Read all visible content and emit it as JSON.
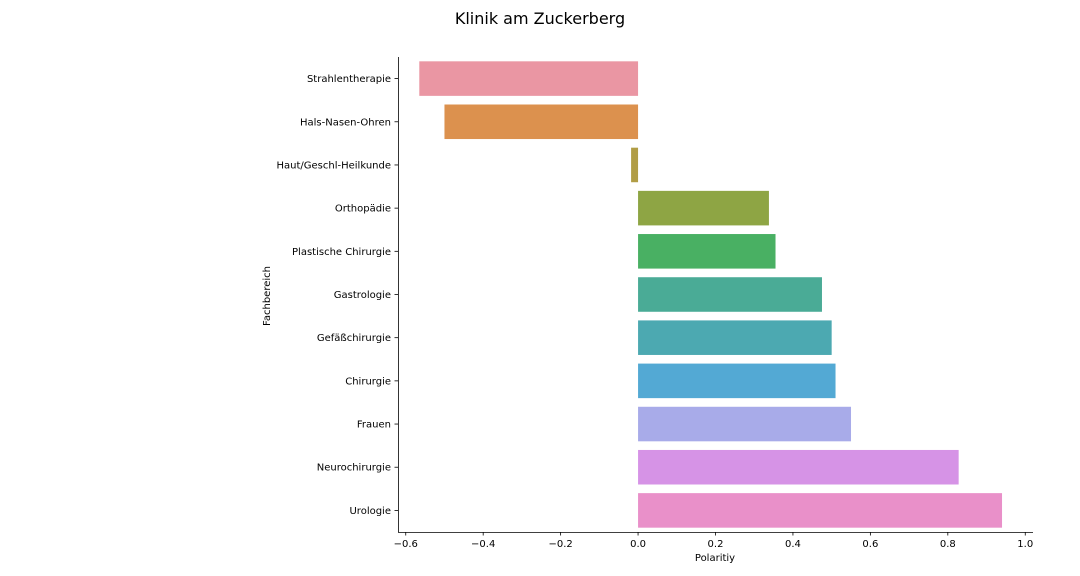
{
  "chart_data": {
    "type": "bar",
    "orientation": "horizontal",
    "title": "Klinik am Zuckerberg",
    "xlabel": "Polaritiy",
    "ylabel": "Fachbereich",
    "xlim": [
      -0.62,
      1.02
    ],
    "xticks": [
      -0.6,
      -0.4,
      -0.2,
      0.0,
      0.2,
      0.4,
      0.6,
      0.8,
      1.0
    ],
    "xtick_labels": [
      "−0.6",
      "−0.4",
      "−0.2",
      "0.0",
      "0.2",
      "0.4",
      "0.6",
      "0.8",
      "1.0"
    ],
    "grid": false,
    "categories": [
      "Strahlentherapie",
      "Hals-Nasen-Ohren",
      "Haut/Geschl-Heilkunde",
      "Orthopädie",
      "Plastische Chirurgie",
      "Gastrologie",
      "Gefäßchirurgie",
      "Chirurgie",
      "Frauen",
      "Neurochirurgie",
      "Urologie"
    ],
    "values": [
      -0.565,
      -0.5,
      -0.018,
      0.338,
      0.355,
      0.475,
      0.5,
      0.51,
      0.55,
      0.828,
      0.94
    ],
    "colors": [
      "#ea96a3",
      "#dc914e",
      "#b19d45",
      "#8ea544",
      "#49b063",
      "#4aab96",
      "#4ca9b1",
      "#53a9d4",
      "#a8abe9",
      "#d693e6",
      "#e990c9"
    ]
  }
}
